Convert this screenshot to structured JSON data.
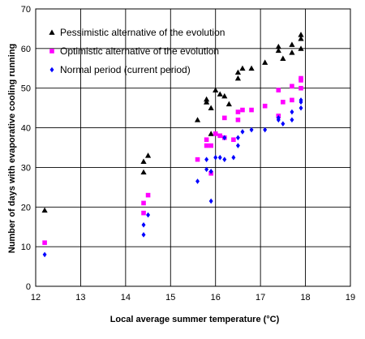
{
  "chart_data": {
    "type": "scatter",
    "xlabel": "Local average summer temperature (°C)",
    "ylabel": "Number of days with evaporative cooling running",
    "xlim": [
      12,
      19
    ],
    "ylim": [
      0,
      70
    ],
    "x_ticks": [
      12,
      13,
      14,
      15,
      16,
      17,
      18,
      19
    ],
    "y_ticks": [
      0,
      10,
      20,
      30,
      40,
      50,
      60,
      70
    ],
    "grid": true,
    "legend_position": "top-left",
    "series": [
      {
        "name": "Pessimistic alternative of the evolution",
        "marker": "triangle",
        "color": "#000000",
        "points": [
          [
            12.2,
            19.2
          ],
          [
            14.4,
            31.5
          ],
          [
            14.4,
            28.8
          ],
          [
            14.5,
            33.0
          ],
          [
            15.6,
            42.0
          ],
          [
            15.8,
            46.5
          ],
          [
            15.8,
            47.2
          ],
          [
            15.9,
            45.0
          ],
          [
            15.9,
            38.5
          ],
          [
            16.0,
            49.5
          ],
          [
            16.1,
            48.5
          ],
          [
            16.2,
            48.0
          ],
          [
            16.3,
            46.0
          ],
          [
            16.5,
            54.0
          ],
          [
            16.5,
            52.5
          ],
          [
            16.6,
            55.0
          ],
          [
            16.8,
            55.0
          ],
          [
            17.1,
            56.5
          ],
          [
            17.4,
            59.5
          ],
          [
            17.4,
            60.5
          ],
          [
            17.5,
            57.5
          ],
          [
            17.7,
            61.0
          ],
          [
            17.7,
            59.0
          ],
          [
            17.9,
            62.5
          ],
          [
            17.9,
            63.5
          ],
          [
            17.9,
            60.0
          ]
        ]
      },
      {
        "name": "Optimistic alternative of the evolution",
        "marker": "square",
        "color": "#ff00ff",
        "points": [
          [
            12.2,
            11.0
          ],
          [
            14.4,
            21.0
          ],
          [
            14.4,
            18.5
          ],
          [
            14.5,
            23.0
          ],
          [
            15.6,
            32.0
          ],
          [
            15.8,
            37.0
          ],
          [
            15.8,
            35.5
          ],
          [
            15.9,
            28.5
          ],
          [
            15.9,
            35.5
          ],
          [
            16.0,
            38.5
          ],
          [
            16.1,
            38.0
          ],
          [
            16.2,
            42.5
          ],
          [
            16.2,
            37.5
          ],
          [
            16.4,
            37.0
          ],
          [
            16.5,
            44.0
          ],
          [
            16.5,
            42.0
          ],
          [
            16.6,
            44.5
          ],
          [
            16.8,
            44.5
          ],
          [
            17.1,
            45.5
          ],
          [
            17.4,
            49.5
          ],
          [
            17.4,
            43.0
          ],
          [
            17.5,
            46.5
          ],
          [
            17.7,
            50.5
          ],
          [
            17.7,
            47.0
          ],
          [
            17.9,
            52.5
          ],
          [
            17.9,
            50.0
          ],
          [
            17.9,
            52.0
          ]
        ]
      },
      {
        "name": "Normal period (current period)",
        "marker": "diamond",
        "color": "#0000ff",
        "points": [
          [
            12.2,
            8.0
          ],
          [
            14.4,
            15.5
          ],
          [
            14.4,
            13.0
          ],
          [
            14.5,
            18.0
          ],
          [
            15.6,
            26.5
          ],
          [
            15.8,
            32.0
          ],
          [
            15.8,
            29.5
          ],
          [
            15.9,
            21.5
          ],
          [
            15.9,
            29.0
          ],
          [
            16.0,
            32.5
          ],
          [
            16.1,
            32.5
          ],
          [
            16.2,
            32.0
          ],
          [
            16.2,
            37.5
          ],
          [
            16.4,
            32.5
          ],
          [
            16.5,
            35.5
          ],
          [
            16.5,
            37.5
          ],
          [
            16.6,
            39.0
          ],
          [
            16.8,
            39.5
          ],
          [
            17.1,
            39.5
          ],
          [
            17.4,
            42.5
          ],
          [
            17.4,
            42.0
          ],
          [
            17.5,
            41.0
          ],
          [
            17.7,
            44.0
          ],
          [
            17.7,
            42.0
          ],
          [
            17.9,
            45.0
          ],
          [
            17.9,
            46.5
          ],
          [
            17.9,
            47.0
          ]
        ]
      }
    ]
  }
}
